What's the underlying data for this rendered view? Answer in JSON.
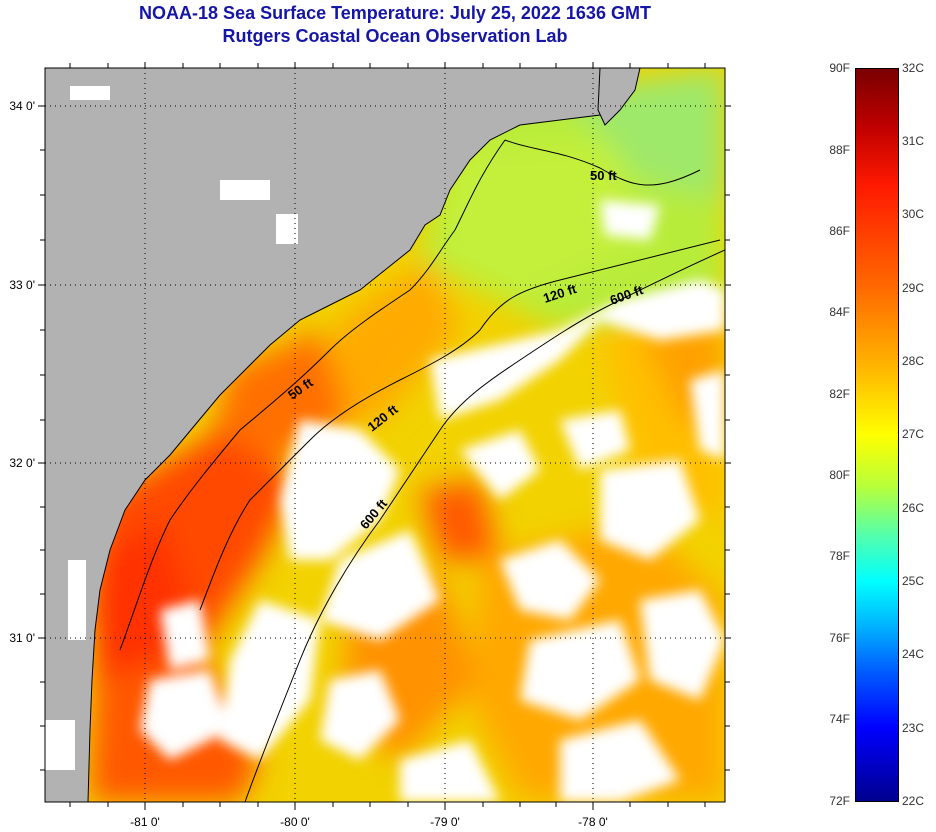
{
  "title": {
    "line1": "NOAA-18 Sea Surface Temperature:  July 25, 2022 1636 GMT",
    "line2": "Rutgers Coastal Ocean Observation Lab"
  },
  "axes": {
    "lat_labels": [
      "34 0'",
      "33 0'",
      "32 0'",
      "31 0'"
    ],
    "lon_labels": [
      "-81 0'",
      "-80 0'",
      "-79 0'",
      "-78 0'"
    ]
  },
  "contours": {
    "labels": [
      "50 ft",
      "120 ft",
      "600 ft",
      "50 ft",
      "120 ft",
      "600 ft"
    ]
  },
  "colorbar": {
    "fahrenheit": [
      "90F",
      "88F",
      "86F",
      "84F",
      "82F",
      "80F",
      "78F",
      "76F",
      "74F",
      "72F"
    ],
    "celsius": [
      "32C",
      "31C",
      "30C",
      "29C",
      "28C",
      "27C",
      "26C",
      "25C",
      "24C",
      "23C",
      "22C"
    ],
    "colors": [
      "#7a0000",
      "#ff1a00",
      "#ffb000",
      "#ffff00",
      "#50ffb0",
      "#00ffff",
      "#0060ff",
      "#00008f"
    ]
  },
  "colors": {
    "land": "#b2b2b2",
    "title": "#1515a6",
    "cloud": "#ffffff"
  }
}
